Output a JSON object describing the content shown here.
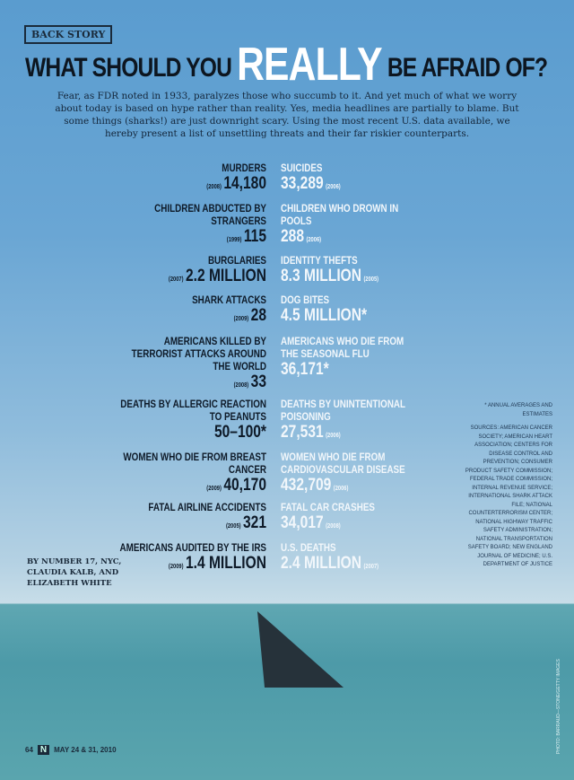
{
  "section_tag": "BACK STORY",
  "title": {
    "before": "WHAT SHOULD YOU",
    "emphasis": "REALLY",
    "after": "BE AFRAID OF?"
  },
  "intro": "Fear, as FDR noted in 1933, paralyzes those who succumb to it. And yet much of what we worry about today is based on hype rather than reality. Yes, media headlines are partially to blame. But some things (sharks!) are just downright scary. Using the most recent U.S. data available, we hereby present a list of unsettling threats and their far riskier counterparts.",
  "rows": [
    {
      "left": {
        "label": "MURDERS",
        "year": "(2008)",
        "value": "14,180"
      },
      "right": {
        "label": "SUICIDES",
        "value": "33,289",
        "year": "(2006)"
      }
    },
    {
      "left": {
        "label": "CHILDREN ABDUCTED BY STRANGERS",
        "year": "(1999)",
        "value": "115"
      },
      "right": {
        "label": "CHILDREN WHO DROWN IN POOLS",
        "value": "288",
        "year": "(2006)"
      }
    },
    {
      "left": {
        "label": "BURGLARIES",
        "year": "(2007)",
        "value": "2.2 MILLION"
      },
      "right": {
        "label": "IDENTITY THEFTS",
        "value": "8.3 MILLION",
        "year": "(2005)"
      }
    },
    {
      "left": {
        "label": "SHARK ATTACKS",
        "year": "(2009)",
        "value": "28"
      },
      "right": {
        "label": "DOG BITES",
        "value": "4.5 MILLION*",
        "year": ""
      }
    },
    {
      "left": {
        "label": "AMERICANS KILLED BY TERRORIST ATTACKS AROUND THE WORLD",
        "year": "(2008)",
        "value": "33"
      },
      "right": {
        "label": "AMERICANS WHO DIE FROM THE SEASONAL FLU",
        "value": "36,171*",
        "year": ""
      }
    },
    {
      "left": {
        "label": "DEATHS BY ALLERGIC REACTION TO PEANUTS",
        "year": "",
        "value": "50–100*"
      },
      "right": {
        "label": "DEATHS BY UNINTENTIONAL POISONING",
        "value": "27,531",
        "year": "(2006)"
      }
    },
    {
      "left": {
        "label": "WOMEN WHO DIE FROM BREAST CANCER",
        "year": "(2009)",
        "value": "40,170"
      },
      "right": {
        "label": "WOMEN WHO DIE FROM CARDIOVASCULAR DISEASE",
        "value": "432,709",
        "year": "(2006)"
      }
    },
    {
      "left": {
        "label": "FATAL AIRLINE ACCIDENTS",
        "year": "(2005)",
        "value": "321"
      },
      "right": {
        "label": "FATAL CAR CRASHES",
        "value": "34,017",
        "year": "(2008)"
      }
    },
    {
      "left": {
        "label": "AMERICANS AUDITED BY THE IRS",
        "year": "(2009)",
        "value": "1.4 MILLION"
      },
      "right": {
        "label": "U.S. DEATHS",
        "value": "2.4 MILLION",
        "year": "(2007)"
      }
    }
  ],
  "notes": {
    "asterisk": "* ANNUAL AVERAGES AND ESTIMATES",
    "sources": "SOURCES: AMERICAN CANCER SOCIETY; AMERICAN HEART ASSOCIATION; CENTERS FOR DISEASE CONTROL AND PREVENTION; CONSUMER PRODUCT SAFETY COMMISSION; FEDERAL TRADE COMMISSION; INTERNAL REVENUE SERVICE; INTERNATIONAL SHARK ATTACK FILE; NATIONAL COUNTERTERRORISM CENTER; NATIONAL HIGHWAY TRAFFIC SAFETY ADMINISTRATION; NATIONAL TRANSPORTATION SAFETY BOARD; NEW ENGLAND JOURNAL OF MEDICINE; U.S. DEPARTMENT OF JUSTICE"
  },
  "byline": [
    "BY NUMBER 17, NYC,",
    "CLAUDIA KALB, AND",
    "ELIZABETH WHITE"
  ],
  "footer": {
    "page": "64",
    "logo": "N",
    "date": "MAY 24 & 31, 2010"
  },
  "photo_credit": "PHOTO: BARRAUD—STONE/GETTY IMAGES"
}
